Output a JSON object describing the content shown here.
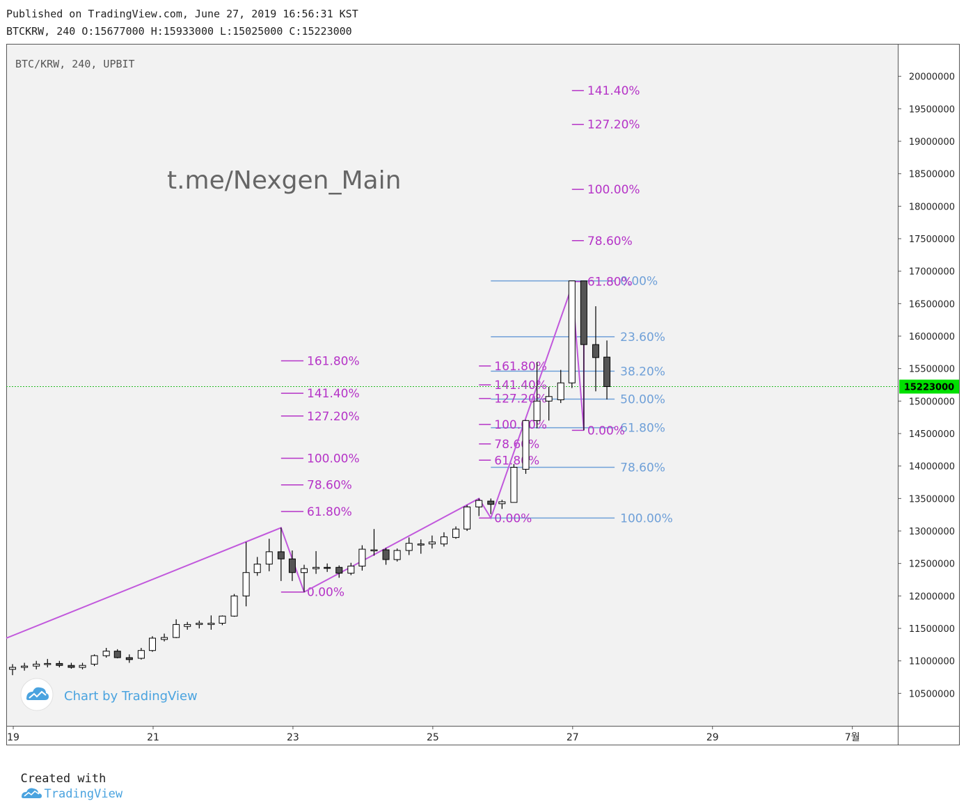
{
  "header": {
    "published": "Published on TradingView.com, June 27, 2019 16:56:31 KST",
    "ohlc": "BTCKRW, 240 O:15677000 H:15933000 L:15025000 C:15223000"
  },
  "footer": {
    "created_with": "Created with",
    "brand": "TradingView"
  },
  "colors": {
    "background": "#f2f2f2",
    "zigzag": "#c158dc",
    "fib_retracement": "#6fa0d8",
    "fib_extension": "#b533c7",
    "last_price_bg": "#00e000",
    "last_price_line": "#22bb22"
  },
  "chart_data": {
    "type": "candlestick",
    "symbol_label": "BTC/KRW, 240, UPBIT",
    "watermark": "t.me/Nexgen_Main",
    "badge": "Chart by TradingView",
    "badge_icon": "tradingview-cloud-icon",
    "grid": false,
    "ylim": [
      10000000,
      20500000
    ],
    "x_range": [
      18.9,
      31.65
    ],
    "y_ticks": [
      10500000,
      11000000,
      11500000,
      12000000,
      12500000,
      13000000,
      13500000,
      14000000,
      14500000,
      15000000,
      15500000,
      16000000,
      16500000,
      17000000,
      17500000,
      18000000,
      18500000,
      19000000,
      19500000,
      20000000
    ],
    "x_ticks": [
      {
        "t": 19,
        "label": "19"
      },
      {
        "t": 21,
        "label": "21"
      },
      {
        "t": 23,
        "label": "23"
      },
      {
        "t": 25,
        "label": "25"
      },
      {
        "t": 27,
        "label": "27"
      },
      {
        "t": 29,
        "label": "29"
      },
      {
        "t": 31,
        "label": "7월"
      }
    ],
    "last_price": 15223000,
    "last_price_label": "15223000",
    "candles": [
      {
        "t": 18.99,
        "o": 10870000,
        "h": 10950000,
        "l": 10780000,
        "c": 10900000
      },
      {
        "t": 19.16,
        "o": 10900000,
        "h": 10970000,
        "l": 10850000,
        "c": 10920000
      },
      {
        "t": 19.33,
        "o": 10920000,
        "h": 11000000,
        "l": 10870000,
        "c": 10950000
      },
      {
        "t": 19.49,
        "o": 10950000,
        "h": 11030000,
        "l": 10900000,
        "c": 10960000
      },
      {
        "t": 19.66,
        "o": 10960000,
        "h": 11000000,
        "l": 10900000,
        "c": 10930000
      },
      {
        "t": 19.83,
        "o": 10930000,
        "h": 10970000,
        "l": 10880000,
        "c": 10900000
      },
      {
        "t": 19.99,
        "o": 10900000,
        "h": 10970000,
        "l": 10870000,
        "c": 10930000
      },
      {
        "t": 20.16,
        "o": 10950000,
        "h": 11100000,
        "l": 10920000,
        "c": 11080000
      },
      {
        "t": 20.33,
        "o": 11080000,
        "h": 11200000,
        "l": 11050000,
        "c": 11150000
      },
      {
        "t": 20.49,
        "o": 11150000,
        "h": 11180000,
        "l": 11040000,
        "c": 11050000
      },
      {
        "t": 20.66,
        "o": 11050000,
        "h": 11100000,
        "l": 10970000,
        "c": 11020000
      },
      {
        "t": 20.83,
        "o": 11040000,
        "h": 11200000,
        "l": 11020000,
        "c": 11160000
      },
      {
        "t": 20.99,
        "o": 11160000,
        "h": 11380000,
        "l": 11140000,
        "c": 11350000
      },
      {
        "t": 21.16,
        "o": 11330000,
        "h": 11420000,
        "l": 11300000,
        "c": 11360000
      },
      {
        "t": 21.33,
        "o": 11360000,
        "h": 11640000,
        "l": 11350000,
        "c": 11560000
      },
      {
        "t": 21.49,
        "o": 11530000,
        "h": 11600000,
        "l": 11480000,
        "c": 11560000
      },
      {
        "t": 21.66,
        "o": 11560000,
        "h": 11620000,
        "l": 11500000,
        "c": 11580000
      },
      {
        "t": 21.83,
        "o": 11560000,
        "h": 11700000,
        "l": 11480000,
        "c": 11580000
      },
      {
        "t": 21.99,
        "o": 11580000,
        "h": 11700000,
        "l": 11550000,
        "c": 11690000
      },
      {
        "t": 22.16,
        "o": 11690000,
        "h": 12030000,
        "l": 11680000,
        "c": 12000000
      },
      {
        "t": 22.33,
        "o": 12000000,
        "h": 12830000,
        "l": 11840000,
        "c": 12360000
      },
      {
        "t": 22.49,
        "o": 12360000,
        "h": 12600000,
        "l": 12310000,
        "c": 12490000
      },
      {
        "t": 22.66,
        "o": 12490000,
        "h": 12880000,
        "l": 12380000,
        "c": 12680000
      },
      {
        "t": 22.83,
        "o": 12680000,
        "h": 13050000,
        "l": 12230000,
        "c": 12570000
      },
      {
        "t": 22.99,
        "o": 12570000,
        "h": 12700000,
        "l": 12230000,
        "c": 12360000
      },
      {
        "t": 23.16,
        "o": 12360000,
        "h": 12480000,
        "l": 12060000,
        "c": 12420000
      },
      {
        "t": 23.33,
        "o": 12420000,
        "h": 12690000,
        "l": 12340000,
        "c": 12440000
      },
      {
        "t": 23.49,
        "o": 12440000,
        "h": 12500000,
        "l": 12370000,
        "c": 12430000
      },
      {
        "t": 23.66,
        "o": 12440000,
        "h": 12470000,
        "l": 12280000,
        "c": 12350000
      },
      {
        "t": 23.83,
        "o": 12350000,
        "h": 12510000,
        "l": 12320000,
        "c": 12460000
      },
      {
        "t": 23.99,
        "o": 12460000,
        "h": 12780000,
        "l": 12390000,
        "c": 12720000
      },
      {
        "t": 24.16,
        "o": 12700000,
        "h": 13030000,
        "l": 12620000,
        "c": 12710000
      },
      {
        "t": 24.33,
        "o": 12710000,
        "h": 12740000,
        "l": 12480000,
        "c": 12560000
      },
      {
        "t": 24.49,
        "o": 12560000,
        "h": 12730000,
        "l": 12530000,
        "c": 12700000
      },
      {
        "t": 24.66,
        "o": 12700000,
        "h": 12900000,
        "l": 12630000,
        "c": 12810000
      },
      {
        "t": 24.83,
        "o": 12800000,
        "h": 12870000,
        "l": 12650000,
        "c": 12800000
      },
      {
        "t": 24.99,
        "o": 12800000,
        "h": 12930000,
        "l": 12730000,
        "c": 12830000
      },
      {
        "t": 25.16,
        "o": 12800000,
        "h": 12980000,
        "l": 12760000,
        "c": 12910000
      },
      {
        "t": 25.33,
        "o": 12900000,
        "h": 13070000,
        "l": 12880000,
        "c": 13030000
      },
      {
        "t": 25.49,
        "o": 13030000,
        "h": 13400000,
        "l": 13000000,
        "c": 13370000
      },
      {
        "t": 25.66,
        "o": 13370000,
        "h": 13500000,
        "l": 13230000,
        "c": 13470000
      },
      {
        "t": 25.83,
        "o": 13460000,
        "h": 13500000,
        "l": 13260000,
        "c": 13410000
      },
      {
        "t": 25.99,
        "o": 13420000,
        "h": 13480000,
        "l": 13340000,
        "c": 13450000
      },
      {
        "t": 26.16,
        "o": 13440000,
        "h": 14030000,
        "l": 13440000,
        "c": 13980000
      },
      {
        "t": 26.33,
        "o": 13950000,
        "h": 14710000,
        "l": 13880000,
        "c": 14700000
      },
      {
        "t": 26.49,
        "o": 14700000,
        "h": 15600000,
        "l": 14580000,
        "c": 15000000
      },
      {
        "t": 26.66,
        "o": 15000000,
        "h": 15220000,
        "l": 14700000,
        "c": 15070000
      },
      {
        "t": 26.83,
        "o": 15020000,
        "h": 15480000,
        "l": 14970000,
        "c": 15280000
      },
      {
        "t": 26.99,
        "o": 15280000,
        "h": 16850000,
        "l": 15200000,
        "c": 16850000
      },
      {
        "t": 27.16,
        "o": 16850000,
        "h": 16850000,
        "l": 14550000,
        "c": 15870000
      },
      {
        "t": 27.33,
        "o": 15870000,
        "h": 16460000,
        "l": 15150000,
        "c": 15670000
      },
      {
        "t": 27.49,
        "o": 15677000,
        "h": 15933000,
        "l": 15025000,
        "c": 15223000
      }
    ],
    "zigzag": [
      {
        "t": 18.9,
        "p": 11350000
      },
      {
        "t": 22.83,
        "p": 13050000
      },
      {
        "t": 23.16,
        "p": 12060000
      },
      {
        "t": 25.66,
        "p": 13500000
      },
      {
        "t": 25.83,
        "p": 13200000
      },
      {
        "t": 26.99,
        "p": 16770000
      },
      {
        "t": 27.16,
        "p": 14550000
      },
      {
        "t": 27.16,
        "p": 16850000
      }
    ],
    "fib_retracement": {
      "t_start": 25.83,
      "t_end": 27.6,
      "label_t": 27.68,
      "levels": [
        {
          "label": "0.00%",
          "p": 16850000
        },
        {
          "label": "23.60%",
          "p": 15990000
        },
        {
          "label": "38.20%",
          "p": 15460000
        },
        {
          "label": "50.00%",
          "p": 15030000
        },
        {
          "label": "61.80%",
          "p": 14590000
        },
        {
          "label": "78.60%",
          "p": 13980000
        },
        {
          "label": "100.00%",
          "p": 13200000
        }
      ]
    },
    "fib_extensions": [
      {
        "t_start": 22.83,
        "t_end": 23.15,
        "label_t": 23.2,
        "levels": [
          {
            "label": "0.00%",
            "p": 12060000
          },
          {
            "label": "61.80%",
            "p": 13300000
          },
          {
            "label": "78.60%",
            "p": 13710000
          },
          {
            "label": "100.00%",
            "p": 14120000
          },
          {
            "label": "127.20%",
            "p": 14770000
          },
          {
            "label": "141.40%",
            "p": 15120000
          },
          {
            "label": "161.80%",
            "p": 15620000
          }
        ]
      },
      {
        "t_start": 25.66,
        "t_end": 25.83,
        "label_t": 25.88,
        "levels": [
          {
            "label": "0.00%",
            "p": 13200000
          },
          {
            "label": "61.80%",
            "p": 14090000
          },
          {
            "label": "78.60%",
            "p": 14340000
          },
          {
            "label": "100.00%",
            "p": 14640000
          },
          {
            "label": "127.20%",
            "p": 15040000
          },
          {
            "label": "141.40%",
            "p": 15250000
          },
          {
            "label": "161.80%",
            "p": 15540000
          }
        ]
      },
      {
        "t_start": 26.99,
        "t_end": 27.16,
        "label_t": 27.21,
        "levels": [
          {
            "label": "0.00%",
            "p": 14550000
          },
          {
            "label": "61.80%",
            "p": 16840000
          },
          {
            "label": "78.60%",
            "p": 17470000
          },
          {
            "label": "100.00%",
            "p": 18260000
          },
          {
            "label": "127.20%",
            "p": 19260000
          },
          {
            "label": "141.40%",
            "p": 19780000
          }
        ]
      }
    ]
  }
}
